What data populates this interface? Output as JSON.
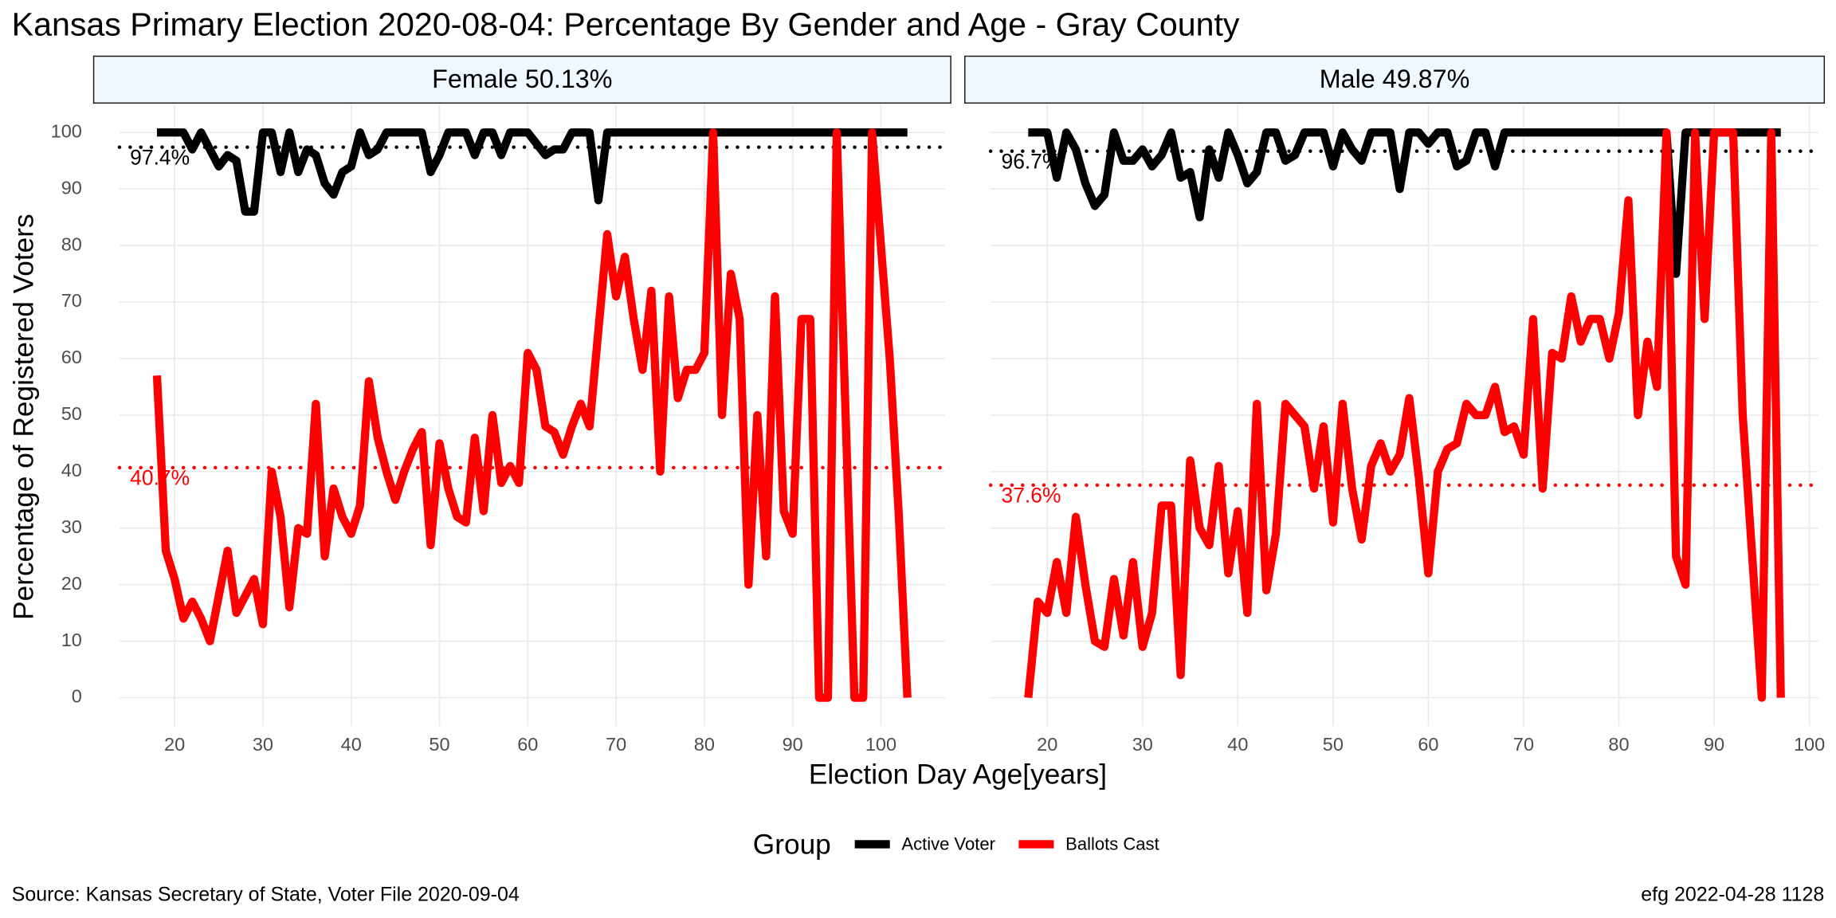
{
  "title": "Kansas Primary Election 2020-08-04:  Percentage By Gender and Age - Gray County",
  "x_label": "Election Day Age[years]",
  "y_label": "Percentage of Registered Voters",
  "legend_title": "Group",
  "source": "Source:  Kansas Secretary of State, Voter File  2020-09-04",
  "credit": "efg 2022-04-28 1128",
  "chart_data": [
    {
      "type": "line",
      "title": "Female 50.13%",
      "x": [
        18,
        19,
        20,
        21,
        22,
        23,
        24,
        25,
        26,
        27,
        28,
        29,
        30,
        31,
        32,
        33,
        34,
        35,
        36,
        37,
        38,
        39,
        40,
        41,
        42,
        43,
        44,
        45,
        46,
        47,
        48,
        49,
        50,
        51,
        52,
        53,
        54,
        55,
        56,
        57,
        58,
        59,
        60,
        61,
        62,
        63,
        64,
        65,
        66,
        67,
        68,
        69,
        70,
        71,
        72,
        73,
        74,
        75,
        76,
        77,
        78,
        79,
        80,
        81,
        82,
        83,
        84,
        85,
        86,
        87,
        88,
        89,
        90,
        91,
        92,
        93,
        94,
        95,
        96,
        97,
        98,
        99,
        100,
        101,
        102,
        103
      ],
      "series": [
        {
          "name": "Active Voter",
          "color": "#000000",
          "values": [
            100,
            100,
            100,
            100,
            97,
            100,
            97,
            94,
            96,
            95,
            86,
            86,
            100,
            100,
            93,
            100,
            93,
            97,
            96,
            91,
            89,
            93,
            94,
            100,
            96,
            97,
            100,
            100,
            100,
            100,
            100,
            93,
            96,
            100,
            100,
            100,
            96,
            100,
            100,
            96,
            100,
            100,
            100,
            98,
            96,
            97,
            97,
            100,
            100,
            100,
            88,
            100,
            100,
            100,
            100,
            100,
            100,
            100,
            100,
            100,
            100,
            100,
            100,
            100,
            100,
            100,
            100,
            100,
            100,
            100,
            100,
            100,
            100,
            100,
            100,
            100,
            100,
            100,
            100,
            100,
            100,
            100,
            100,
            100,
            100,
            100
          ]
        },
        {
          "name": "Ballots Cast",
          "color": "#ff0000",
          "values": [
            57,
            26,
            21,
            14,
            17,
            14,
            10,
            18,
            26,
            15,
            18,
            21,
            13,
            40,
            32,
            16,
            30,
            29,
            52,
            25,
            37,
            32,
            29,
            34,
            56,
            46,
            40,
            35,
            40,
            44,
            47,
            27,
            45,
            37,
            32,
            31,
            46,
            33,
            50,
            38,
            41,
            38,
            61,
            58,
            48,
            47,
            43,
            48,
            52,
            48,
            65,
            82,
            71,
            78,
            67,
            58,
            72,
            40,
            71,
            53,
            58,
            58,
            61,
            100,
            50,
            75,
            67,
            20,
            50,
            25,
            71,
            33,
            29,
            67,
            67,
            0,
            0,
            100,
            50,
            0,
            0,
            100,
            80,
            60,
            33,
            0
          ]
        }
      ],
      "reference_lines": [
        {
          "value": 97.4,
          "label": "97.4%",
          "color": "#000000"
        },
        {
          "value": 40.7,
          "label": "40.7%",
          "color": "#ff0000"
        }
      ],
      "xlim": [
        13.75,
        107.25
      ],
      "ylim": [
        -5,
        105
      ],
      "xticks": [
        20,
        30,
        40,
        50,
        60,
        70,
        80,
        90,
        100
      ],
      "yticks": [
        0,
        10,
        20,
        30,
        40,
        50,
        60,
        70,
        80,
        90,
        100
      ],
      "grid": true
    },
    {
      "type": "line",
      "title": "Male 49.87%",
      "x": [
        18,
        19,
        20,
        21,
        22,
        23,
        24,
        25,
        26,
        27,
        28,
        29,
        30,
        31,
        32,
        33,
        34,
        35,
        36,
        37,
        38,
        39,
        40,
        41,
        42,
        43,
        44,
        45,
        46,
        47,
        48,
        49,
        50,
        51,
        52,
        53,
        54,
        55,
        56,
        57,
        58,
        59,
        60,
        61,
        62,
        63,
        64,
        65,
        66,
        67,
        68,
        69,
        70,
        71,
        72,
        73,
        74,
        75,
        76,
        77,
        78,
        79,
        80,
        81,
        82,
        83,
        84,
        85,
        86,
        87,
        88,
        89,
        90,
        91,
        92,
        93,
        94,
        95,
        96,
        97
      ],
      "series": [
        {
          "name": "Active Voter",
          "color": "#000000",
          "values": [
            100,
            100,
            100,
            92,
            100,
            97,
            91,
            87,
            89,
            100,
            95,
            95,
            97,
            94,
            96,
            100,
            92,
            93,
            85,
            97,
            92,
            100,
            96,
            91,
            93,
            100,
            100,
            95,
            96,
            100,
            100,
            100,
            94,
            100,
            97,
            95,
            100,
            100,
            100,
            90,
            100,
            100,
            98,
            100,
            100,
            94,
            95,
            100,
            100,
            94,
            100,
            100,
            100,
            100,
            100,
            100,
            100,
            100,
            100,
            100,
            100,
            100,
            100,
            100,
            100,
            100,
            100,
            100,
            75,
            100,
            100,
            100,
            100,
            100,
            100,
            100,
            100,
            100,
            100,
            100
          ]
        },
        {
          "name": "Ballots Cast",
          "color": "#ff0000",
          "values": [
            0,
            17,
            15,
            24,
            15,
            32,
            20,
            10,
            9,
            21,
            11,
            24,
            9,
            15,
            34,
            34,
            4,
            42,
            30,
            27,
            41,
            22,
            33,
            15,
            52,
            19,
            29,
            52,
            50,
            48,
            37,
            48,
            31,
            52,
            37,
            28,
            41,
            45,
            40,
            43,
            53,
            39,
            22,
            40,
            44,
            45,
            52,
            50,
            50,
            55,
            47,
            48,
            43,
            67,
            37,
            61,
            60,
            71,
            63,
            67,
            67,
            60,
            68,
            88,
            50,
            63,
            55,
            100,
            25,
            20,
            100,
            67,
            100,
            100,
            100,
            50,
            25,
            0,
            100,
            0
          ]
        }
      ],
      "reference_lines": [
        {
          "value": 96.7,
          "label": "96.7%",
          "color": "#000000"
        },
        {
          "value": 37.6,
          "label": "37.6%",
          "color": "#ff0000"
        }
      ],
      "xlim": [
        14.05,
        100.95
      ],
      "ylim": [
        -5,
        105
      ],
      "xticks": [
        20,
        30,
        40,
        50,
        60,
        70,
        80,
        90,
        100
      ],
      "yticks": [
        0,
        10,
        20,
        30,
        40,
        50,
        60,
        70,
        80,
        90,
        100
      ],
      "grid": true
    }
  ]
}
